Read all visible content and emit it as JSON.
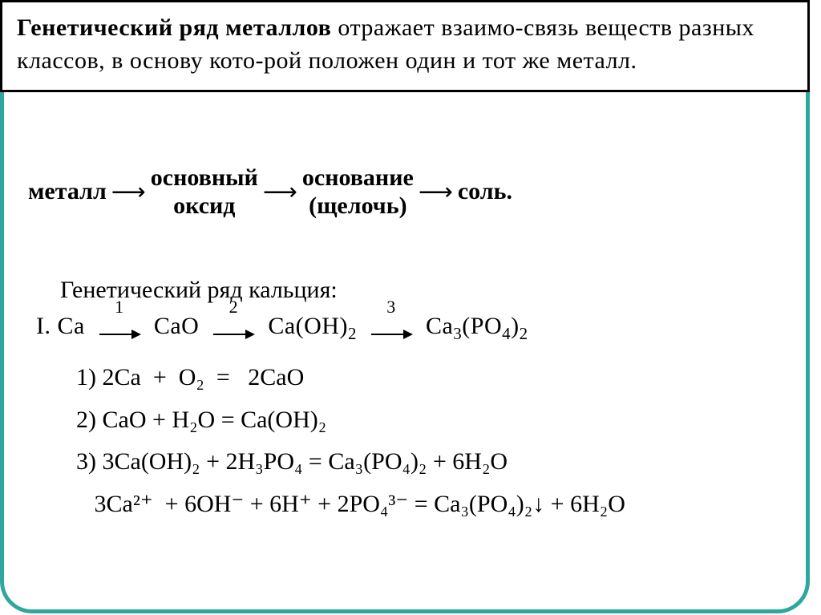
{
  "colors": {
    "frame_border": "#2ea89e",
    "text": "#000000",
    "background": "#ffffff"
  },
  "title": {
    "bold_lead": "Генетический ряд металлов",
    "rest": " отражает взаимо-связь веществ разных классов, в основу кото-рой положен один и тот же металл."
  },
  "flow": {
    "items": [
      "металл",
      "основный\nоксид",
      "основание\n(щелочь)",
      "соль."
    ],
    "arrow": "⟶"
  },
  "subtitle": "Генетический ряд кальция:",
  "chain": {
    "prefix": "I.  Ca",
    "step1_num": "1",
    "step1_to": "CaO",
    "step2_num": "2",
    "step2_to": "Ca(OH)",
    "step2_sub": "2",
    "step3_num": "3",
    "step3_to_a": "Ca",
    "step3_sub_a": "3",
    "step3_to_b": "(PO",
    "step3_sub_b": "4",
    "step3_to_c": ")",
    "step3_sub_c": "2"
  },
  "equations": {
    "e1": "1) 2Ca  +  O₂  =   2CaO",
    "e2": "2) CaO + H₂O = Ca(OH)₂",
    "e3": "3) 3Ca(OH)₂ + 2H₃PO₄ = Ca₃(PO₄)₂ + 6H₂O",
    "e4": "   3Ca²⁺  + 6OH⁻ + 6H⁺ + 2PO₄³⁻ = Ca₃(PO₄)₂↓ + 6H₂O"
  }
}
